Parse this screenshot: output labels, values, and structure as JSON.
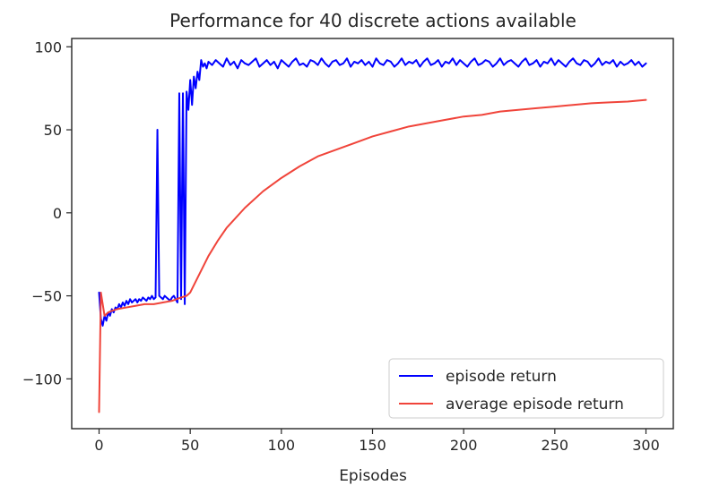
{
  "chart_data": {
    "type": "line",
    "title": "Performance for 40 discrete actions available",
    "xlabel": "Episodes",
    "ylabel": "",
    "xlim": [
      -15,
      315
    ],
    "ylim": [
      -130,
      105
    ],
    "xticks": [
      0,
      50,
      100,
      150,
      200,
      250,
      300
    ],
    "yticks": [
      -100,
      -50,
      0,
      50,
      100
    ],
    "xtick_labels": [
      "0",
      "50",
      "100",
      "150",
      "200",
      "250",
      "300"
    ],
    "ytick_labels": [
      "−100",
      "−50",
      "0",
      "50",
      "100"
    ],
    "grid": false,
    "legend": "lower-right",
    "series": [
      {
        "name": "episode return",
        "color": "#0000ff",
        "x": [
          0,
          1,
          2,
          3,
          4,
          5,
          6,
          7,
          8,
          9,
          10,
          11,
          12,
          13,
          14,
          15,
          16,
          17,
          18,
          19,
          20,
          21,
          22,
          23,
          24,
          25,
          26,
          27,
          28,
          29,
          30,
          31,
          32,
          33,
          34,
          35,
          36,
          37,
          38,
          39,
          40,
          41,
          42,
          43,
          44,
          45,
          46,
          47,
          48,
          49,
          50,
          51,
          52,
          53,
          54,
          55,
          56,
          57,
          58,
          59,
          60,
          62,
          64,
          66,
          68,
          70,
          72,
          74,
          76,
          78,
          80,
          82,
          84,
          86,
          88,
          90,
          92,
          94,
          96,
          98,
          100,
          102,
          104,
          106,
          108,
          110,
          112,
          114,
          116,
          118,
          120,
          122,
          124,
          126,
          128,
          130,
          132,
          134,
          136,
          138,
          140,
          142,
          144,
          146,
          148,
          150,
          152,
          154,
          156,
          158,
          160,
          162,
          164,
          166,
          168,
          170,
          172,
          174,
          176,
          178,
          180,
          182,
          184,
          186,
          188,
          190,
          192,
          194,
          196,
          198,
          200,
          202,
          204,
          206,
          208,
          210,
          212,
          214,
          216,
          218,
          220,
          222,
          224,
          226,
          228,
          230,
          232,
          234,
          236,
          238,
          240,
          242,
          244,
          246,
          248,
          250,
          252,
          254,
          256,
          258,
          260,
          262,
          264,
          266,
          268,
          270,
          272,
          274,
          276,
          278,
          280,
          282,
          284,
          286,
          288,
          290,
          292,
          294,
          296,
          298,
          300
        ],
        "y": [
          -48,
          -64,
          -68,
          -62,
          -65,
          -60,
          -62,
          -58,
          -60,
          -57,
          -58,
          -55,
          -57,
          -54,
          -56,
          -53,
          -55,
          -52,
          -54,
          -53,
          -52,
          -54,
          -52,
          -53,
          -51,
          -52,
          -53,
          -51,
          -52,
          -50,
          -52,
          -51,
          50,
          -50,
          -51,
          -52,
          -50,
          -51,
          -52,
          -53,
          -51,
          -50,
          -52,
          -54,
          72,
          -52,
          72,
          -55,
          73,
          62,
          80,
          65,
          82,
          75,
          85,
          80,
          92,
          88,
          90,
          87,
          91,
          89,
          92,
          90,
          88,
          93,
          89,
          91,
          87,
          92,
          90,
          89,
          91,
          93,
          88,
          90,
          92,
          89,
          91,
          87,
          92,
          90,
          88,
          91,
          93,
          89,
          90,
          88,
          92,
          91,
          89,
          93,
          90,
          88,
          91,
          92,
          89,
          90,
          93,
          88,
          91,
          90,
          92,
          89,
          91,
          88,
          93,
          90,
          89,
          92,
          91,
          88,
          90,
          93,
          89,
          91,
          90,
          92,
          88,
          91,
          93,
          89,
          90,
          92,
          88,
          91,
          90,
          93,
          89,
          92,
          90,
          88,
          91,
          93,
          89,
          90,
          92,
          91,
          88,
          90,
          93,
          89,
          91,
          92,
          90,
          88,
          91,
          93,
          89,
          90,
          92,
          88,
          91,
          90,
          93,
          89,
          92,
          90,
          88,
          91,
          93,
          90,
          89,
          92,
          91,
          88,
          90,
          93,
          89,
          91,
          90,
          92,
          88,
          91,
          89,
          90,
          92,
          89,
          91,
          88,
          90
        ]
      },
      {
        "name": "average episode return",
        "color": "#f0443a",
        "x": [
          0,
          1,
          2,
          3,
          4,
          5,
          7,
          10,
          15,
          20,
          25,
          30,
          35,
          40,
          45,
          48,
          50,
          55,
          60,
          65,
          70,
          80,
          90,
          100,
          110,
          120,
          130,
          140,
          150,
          160,
          170,
          180,
          190,
          200,
          210,
          220,
          230,
          240,
          250,
          260,
          270,
          280,
          290,
          300
        ],
        "y": [
          -120,
          -48,
          -55,
          -62,
          -61,
          -60,
          -59,
          -58,
          -57,
          -56,
          -55,
          -55,
          -54,
          -53,
          -51,
          -50,
          -48,
          -37,
          -26,
          -17,
          -9,
          3,
          13,
          21,
          28,
          34,
          38,
          42,
          46,
          49,
          52,
          54,
          56,
          58,
          59,
          61,
          62,
          63,
          64,
          65,
          66,
          66.5,
          67,
          68
        ]
      }
    ]
  }
}
